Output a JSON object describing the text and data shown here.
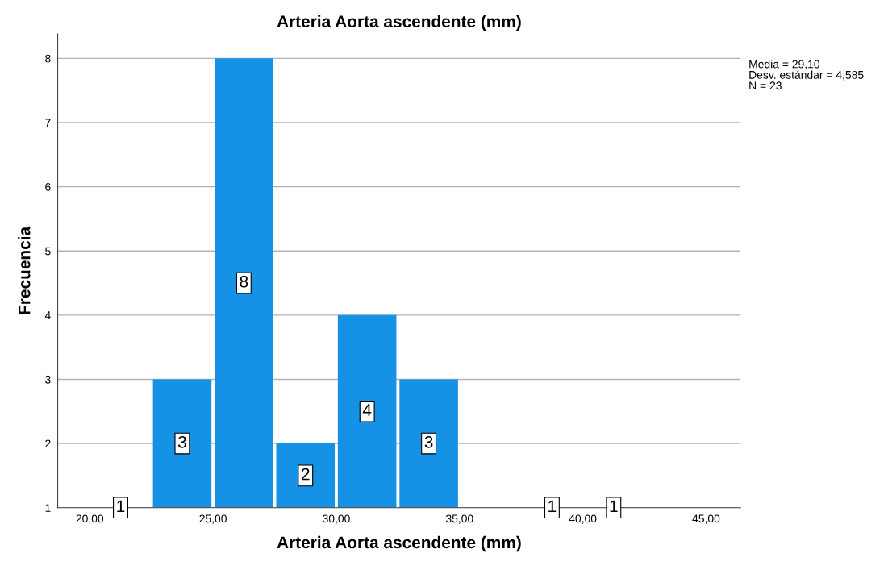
{
  "chart_data": {
    "type": "histogram",
    "title": "Arteria Aorta ascendente (mm)",
    "xlabel": "Arteria Aorta ascendente (mm)",
    "ylabel": "Frecuencia",
    "bins": [
      20,
      22.5,
      25,
      27.5,
      30,
      32.5,
      35,
      37.5,
      40,
      42.5
    ],
    "values": [
      1,
      3,
      8,
      2,
      4,
      3,
      null,
      1,
      1
    ],
    "value_labels": [
      "1",
      "3",
      "8",
      "2",
      "4",
      "3",
      null,
      "1",
      "1"
    ],
    "color": "#1591e6",
    "xlim": [
      18.7,
      46.4
    ],
    "xticks": [
      {
        "value": 20,
        "label": "20,00"
      },
      {
        "value": 25,
        "label": "25,00"
      },
      {
        "value": 30,
        "label": "30,00"
      },
      {
        "value": 35,
        "label": "35,00"
      },
      {
        "value": 40,
        "label": "40,00"
      },
      {
        "value": 45,
        "label": "45,00"
      }
    ],
    "ylim": [
      1,
      8.38
    ],
    "yticks": [
      1,
      2,
      3,
      4,
      5,
      6,
      7,
      8
    ],
    "grid": "y",
    "annotations": [
      "Media = 29,10",
      "Desv. estándar = 4,585",
      "N = 23"
    ]
  }
}
